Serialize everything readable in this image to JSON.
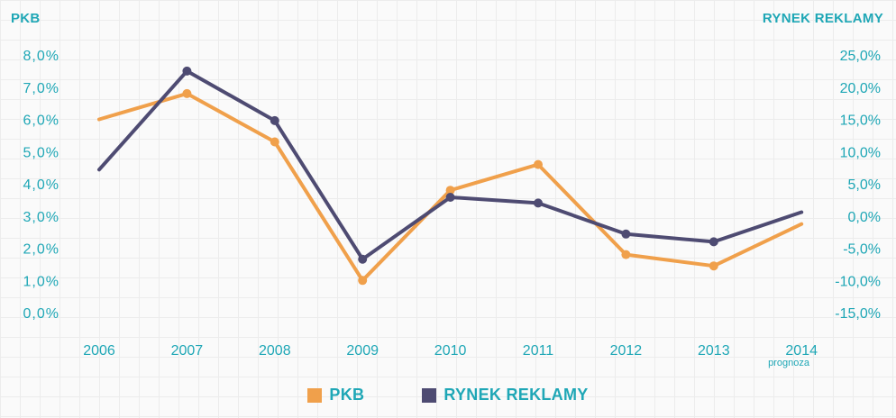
{
  "chart_data": {
    "type": "line",
    "left_axis_title": "PKB",
    "right_axis_title": "RYNEK REKLAMY",
    "categories": [
      "2006",
      "2007",
      "2008",
      "2009",
      "2010",
      "2011",
      "2012",
      "2013",
      "2014"
    ],
    "category_note": "prognoza",
    "left_ticks": [
      "0,0%",
      "1,0%",
      "2,0%",
      "3,0%",
      "4,0%",
      "5,0%",
      "6,0%",
      "7,0%",
      "8,0%"
    ],
    "right_ticks": [
      "-15,0%",
      "-10,0%",
      "-5,0%",
      "0,0%",
      "5,0%",
      "10,0%",
      "15,0%",
      "20,0%",
      "25,0%"
    ],
    "left_ylim": [
      0,
      8
    ],
    "right_ylim": [
      -15,
      25
    ],
    "series": [
      {
        "name": "PKB",
        "axis": "left",
        "color": "#f0a04b",
        "values": [
          6.0,
          6.8,
          5.3,
          1.0,
          3.8,
          4.6,
          1.8,
          1.45,
          2.75
        ]
      },
      {
        "name": "RYNEK REKLAMY",
        "axis": "right",
        "color": "#4e4b72",
        "values": [
          7.2,
          22.5,
          14.8,
          -6.7,
          2.9,
          2.0,
          -2.8,
          -4.0,
          0.6
        ]
      }
    ],
    "legend_position": "bottom",
    "grid": true
  }
}
